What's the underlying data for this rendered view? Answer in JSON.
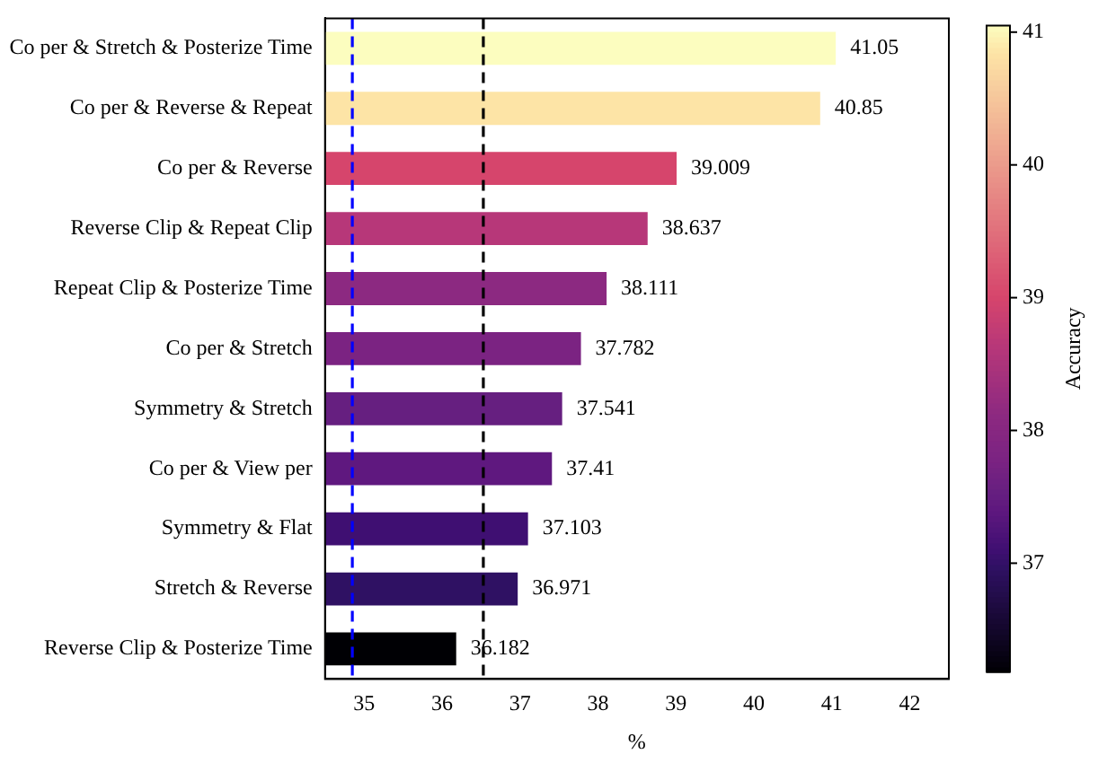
{
  "chart_data": {
    "type": "bar",
    "orientation": "horizontal",
    "xlabel": "%",
    "clabel": "Accuracy",
    "categories": [
      "Co per & Stretch & Posterize Time",
      "Co per & Reverse & Repeat",
      "Co per & Reverse",
      "Reverse Clip & Repeat Clip",
      "Repeat Clip & Posterize Time",
      "Co per & Stretch",
      "Symmetry & Stretch",
      "Co per & View per",
      "Symmetry & Flat",
      "Stretch & Reverse",
      "Reverse Clip & Posterize Time"
    ],
    "values": [
      41.05,
      40.85,
      39.009,
      38.637,
      38.111,
      37.782,
      37.541,
      37.41,
      37.103,
      36.971,
      36.182
    ],
    "colors": [
      "#fcfdbf",
      "#fde4a6",
      "#d6456c",
      "#b73779",
      "#8c2981",
      "#7b2382",
      "#661f80",
      "#5f187f",
      "#3f0f72",
      "#2f1163",
      "#000004"
    ],
    "data_labels": true,
    "xlim": [
      34.5,
      42.5
    ],
    "xticks": [
      35,
      36,
      37,
      38,
      39,
      40,
      41,
      42
    ],
    "clim": [
      36.182,
      41.05
    ],
    "cticks": [
      37,
      38,
      39,
      40,
      41
    ],
    "ref_lines": [
      {
        "axis": "x",
        "value": 34.85,
        "color": "#0000ff",
        "line_style": "dashed"
      },
      {
        "axis": "x",
        "value": 36.53,
        "color": "#000000",
        "line_style": "dashed"
      }
    ],
    "grid": false,
    "legend": false
  }
}
